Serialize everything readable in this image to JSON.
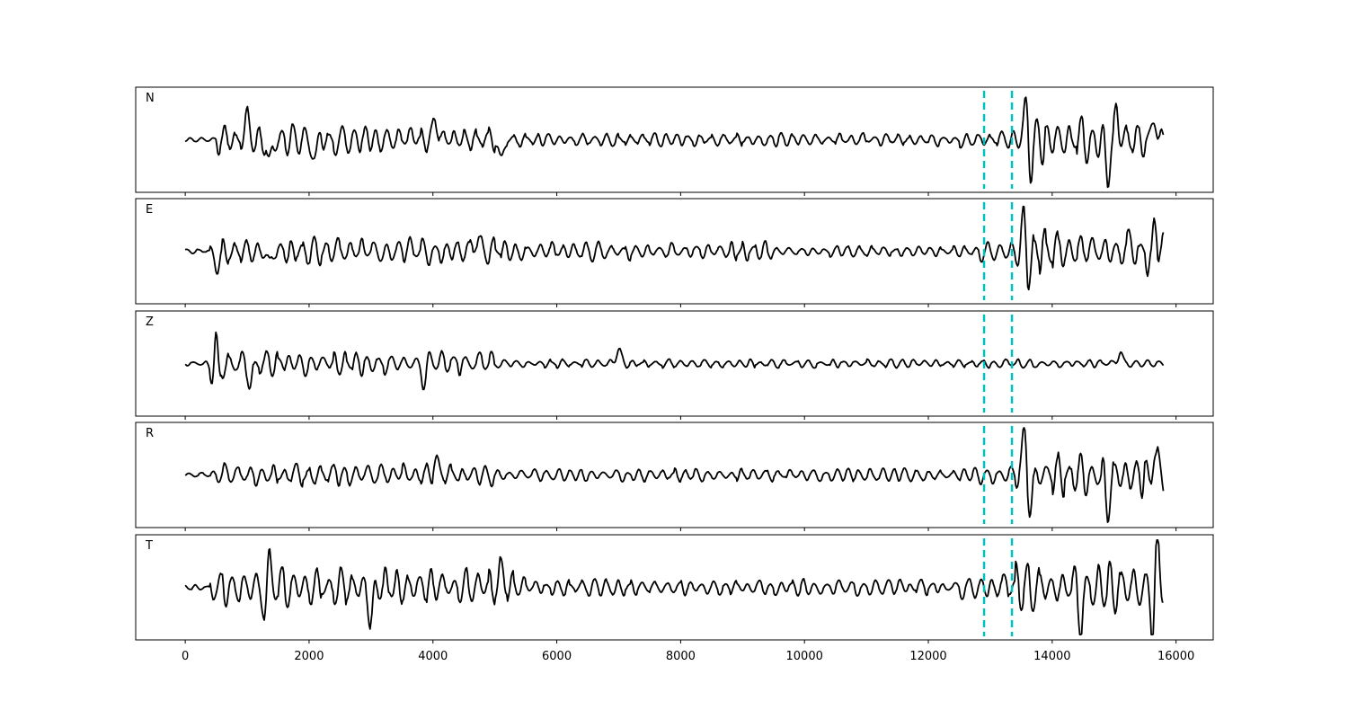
{
  "chart_data": {
    "type": "line",
    "title": "",
    "xlabel": "",
    "ylabel": "",
    "xlim": [
      -800,
      16600
    ],
    "x_ticks": [
      0,
      2000,
      4000,
      6000,
      8000,
      10000,
      12000,
      14000,
      16000
    ],
    "x_tick_labels": [
      "0",
      "2000",
      "4000",
      "6000",
      "8000",
      "10000",
      "12000",
      "14000",
      "16000"
    ],
    "grid": false,
    "legend": "none",
    "trace_color": "#000000",
    "marker_color": "#00bfbf",
    "markers": [
      {
        "x": 12900,
        "style": "dashed"
      },
      {
        "x": 13350,
        "style": "dashed"
      }
    ],
    "series": [
      {
        "name": "N",
        "x_start": 0,
        "x_end": 15800,
        "ylim": [
          -1,
          1
        ],
        "noise_amplitude": 0.25,
        "noise_segments": [
          {
            "x0": 0,
            "x1": 500,
            "amp": 0.04
          },
          {
            "x0": 500,
            "x1": 3000,
            "amp": 0.28
          },
          {
            "x0": 3000,
            "x1": 5200,
            "amp": 0.22
          },
          {
            "x0": 5200,
            "x1": 12500,
            "amp": 0.12
          },
          {
            "x0": 12500,
            "x1": 13300,
            "amp": 0.15
          },
          {
            "x0": 13300,
            "x1": 15800,
            "amp": 0.45
          }
        ],
        "peaks": [
          {
            "x": 1000,
            "y": 0.45
          },
          {
            "x": 1350,
            "y": -0.55
          },
          {
            "x": 2100,
            "y": -0.45
          },
          {
            "x": 4050,
            "y": 0.45
          },
          {
            "x": 5100,
            "y": -0.45
          },
          {
            "x": 13580,
            "y": 0.85
          },
          {
            "x": 13650,
            "y": -0.55
          },
          {
            "x": 14900,
            "y": -0.85
          },
          {
            "x": 15050,
            "y": 0.55
          },
          {
            "x": 15650,
            "y": 0.45
          }
        ]
      },
      {
        "name": "E",
        "x_start": 0,
        "x_end": 15800,
        "ylim": [
          -1,
          1
        ],
        "noise_segments": [
          {
            "x0": 0,
            "x1": 400,
            "amp": 0.04
          },
          {
            "x0": 400,
            "x1": 5000,
            "amp": 0.25
          },
          {
            "x0": 5000,
            "x1": 9500,
            "amp": 0.18
          },
          {
            "x0": 9500,
            "x1": 12800,
            "amp": 0.1
          },
          {
            "x0": 12800,
            "x1": 13400,
            "amp": 0.2
          },
          {
            "x0": 13400,
            "x1": 15800,
            "amp": 0.4
          }
        ],
        "peaks": [
          {
            "x": 520,
            "y": -0.4
          },
          {
            "x": 1350,
            "y": -0.35
          },
          {
            "x": 4700,
            "y": 0.35
          },
          {
            "x": 13550,
            "y": 0.85
          },
          {
            "x": 13600,
            "y": -0.6
          },
          {
            "x": 15650,
            "y": 0.8
          },
          {
            "x": 15600,
            "y": -0.45
          }
        ]
      },
      {
        "name": "Z",
        "x_start": 0,
        "x_end": 15800,
        "ylim": [
          -1,
          1
        ],
        "noise_segments": [
          {
            "x0": 0,
            "x1": 400,
            "amp": 0.05
          },
          {
            "x0": 400,
            "x1": 5000,
            "amp": 0.22
          },
          {
            "x0": 5000,
            "x1": 15800,
            "amp": 0.08
          }
        ],
        "peaks": [
          {
            "x": 500,
            "y": 1.0
          },
          {
            "x": 450,
            "y": -0.45
          },
          {
            "x": 540,
            "y": -0.55
          },
          {
            "x": 1050,
            "y": -0.45
          },
          {
            "x": 3850,
            "y": -0.35
          },
          {
            "x": 7000,
            "y": 0.3
          },
          {
            "x": 15100,
            "y": 0.25
          }
        ]
      },
      {
        "name": "R",
        "x_start": 0,
        "x_end": 15800,
        "ylim": [
          -1,
          1
        ],
        "noise_segments": [
          {
            "x0": 0,
            "x1": 400,
            "amp": 0.04
          },
          {
            "x0": 400,
            "x1": 5000,
            "amp": 0.22
          },
          {
            "x0": 5000,
            "x1": 12700,
            "amp": 0.12
          },
          {
            "x0": 12700,
            "x1": 13400,
            "amp": 0.18
          },
          {
            "x0": 13400,
            "x1": 15800,
            "amp": 0.4
          }
        ],
        "peaks": [
          {
            "x": 4050,
            "y": 0.35
          },
          {
            "x": 13550,
            "y": 0.85
          },
          {
            "x": 13650,
            "y": -0.65
          },
          {
            "x": 14900,
            "y": -0.65
          },
          {
            "x": 15650,
            "y": 0.5
          }
        ]
      },
      {
        "name": "T",
        "x_start": 0,
        "x_end": 15800,
        "ylim": [
          -1,
          1
        ],
        "noise_segments": [
          {
            "x0": 0,
            "x1": 400,
            "amp": 0.05
          },
          {
            "x0": 400,
            "x1": 5500,
            "amp": 0.35
          },
          {
            "x0": 5500,
            "x1": 12500,
            "amp": 0.15
          },
          {
            "x0": 12500,
            "x1": 13400,
            "amp": 0.25
          },
          {
            "x0": 13400,
            "x1": 15800,
            "amp": 0.5
          }
        ],
        "peaks": [
          {
            "x": 1350,
            "y": 0.75
          },
          {
            "x": 1300,
            "y": -0.65
          },
          {
            "x": 3000,
            "y": -0.55
          },
          {
            "x": 5100,
            "y": 0.45
          },
          {
            "x": 14450,
            "y": -0.75
          },
          {
            "x": 15700,
            "y": 0.85
          },
          {
            "x": 15620,
            "y": -0.8
          }
        ]
      }
    ]
  }
}
